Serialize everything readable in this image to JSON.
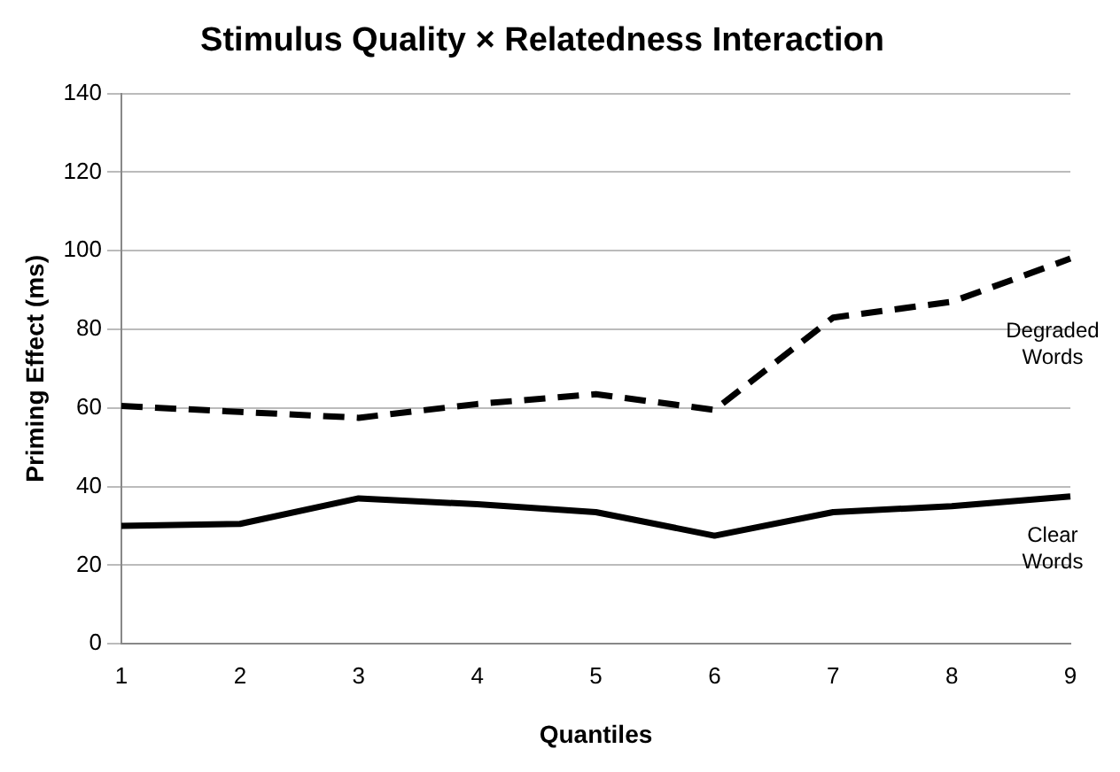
{
  "chart_data": {
    "type": "line",
    "title": "Stimulus Quality × Relatedness Interaction",
    "xlabel": "Quantiles",
    "ylabel": "Priming Effect (ms)",
    "categories": [
      "1",
      "2",
      "3",
      "4",
      "5",
      "6",
      "7",
      "8",
      "9"
    ],
    "series": [
      {
        "name": "Degraded Words",
        "color": "#000000",
        "line_style": "dashed",
        "values": [
          60.5,
          59,
          57.5,
          61,
          63.5,
          59.5,
          83,
          87,
          98
        ]
      },
      {
        "name": "Clear Words",
        "color": "#000000",
        "line_style": "solid",
        "values": [
          30,
          30.5,
          37,
          35.5,
          33.5,
          27.5,
          33.5,
          35,
          37.5
        ]
      }
    ],
    "ylim": [
      0,
      140
    ],
    "yticks": [
      0,
      20,
      40,
      60,
      80,
      100,
      120,
      140
    ],
    "grid": "y",
    "legend": false,
    "marker": "none"
  }
}
